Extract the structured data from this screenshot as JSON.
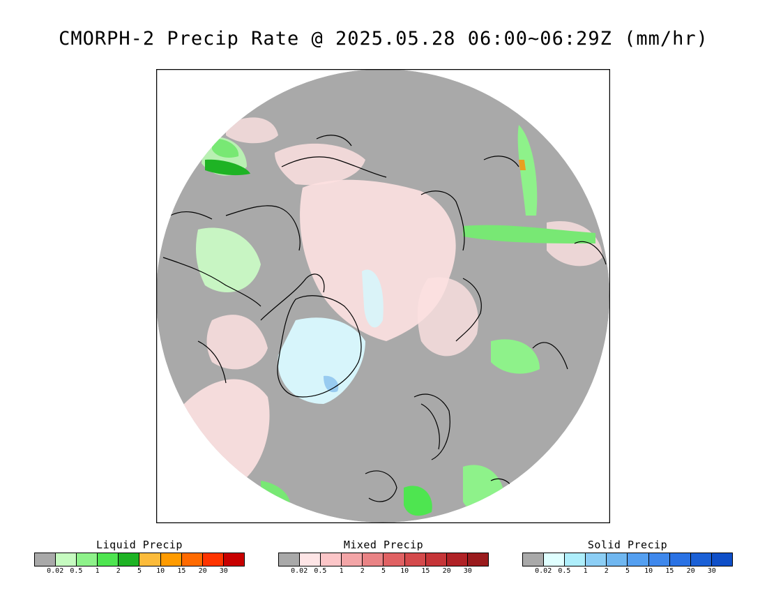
{
  "title": "CMORPH-2 Precip Rate @ 2025.05.28 06:00~06:29Z (mm/hr)",
  "map": {
    "projection": "north-polar-stereographic",
    "coastlines": true,
    "colors": {
      "background": "#a9a9a9",
      "liquid_light": "#c8f5c3",
      "liquid_mid": "#78e874",
      "liquid_heavy": "#16a829",
      "mixed_light": "#fde1e1",
      "mixed_mid": "#f4aeb2",
      "mixed_heavy": "#d84848",
      "solid_light": "#d7f5fb",
      "solid_mid": "#98cbf0",
      "solid_heavy": "#5b9bea",
      "heavy_rain": "#e8a020",
      "coastline": "#000000"
    }
  },
  "legends": [
    {
      "title": "Liquid Precip",
      "colors": [
        "#a9a9a9",
        "#c6fbc0",
        "#8ef28a",
        "#4ee550",
        "#1eb324",
        "#fcbb3a",
        "#ff9b00",
        "#ff6a00",
        "#ff3400",
        "#c80000"
      ],
      "ticks": [
        "0.02",
        "0.5",
        "1",
        "2",
        "5",
        "10",
        "15",
        "20",
        "30"
      ]
    },
    {
      "title": "Mixed Precip",
      "colors": [
        "#a9a9a9",
        "#fee5e6",
        "#fcc6c8",
        "#f3a5a7",
        "#e98385",
        "#e06163",
        "#d44a4c",
        "#c63538",
        "#b02226",
        "#9a1b1d"
      ],
      "ticks": [
        "0.02",
        "0.5",
        "1",
        "2",
        "5",
        "10",
        "15",
        "20",
        "30"
      ]
    },
    {
      "title": "Solid Precip",
      "colors": [
        "#a9a9a9",
        "#e0ffff",
        "#aeeefb",
        "#8ccef5",
        "#70b7f0",
        "#549ff0",
        "#3f88ec",
        "#2a72e4",
        "#1b60d6",
        "#0f4fc8"
      ],
      "ticks": [
        "0.02",
        "0.5",
        "1",
        "2",
        "5",
        "10",
        "15",
        "20",
        "30"
      ]
    }
  ]
}
